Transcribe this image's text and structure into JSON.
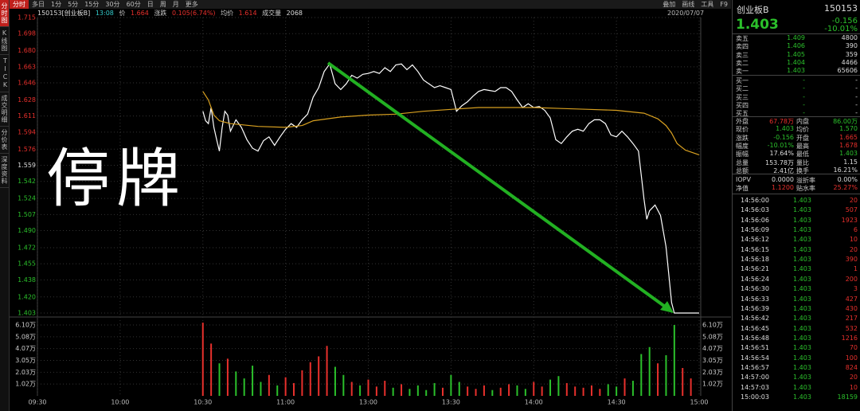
{
  "toolbar": {
    "tabs": [
      "分时",
      "多日",
      "1分",
      "5分",
      "15分",
      "30分",
      "60分",
      "日",
      "周",
      "月",
      "更多"
    ],
    "tools": [
      "叠加",
      "画线",
      "工具",
      "F9"
    ]
  },
  "side_tabs": [
    "分时图",
    "K线图",
    "TICK",
    "成交明细",
    "分价表",
    "深度资料"
  ],
  "info": {
    "code": "150153[创业板B]",
    "time": "13:08",
    "price_label": "价",
    "price": "1.664",
    "change_label": "涨跌",
    "change": "0.105(6.74%)",
    "avg_label": "均价",
    "avg": "1.614",
    "vol_label": "成交量",
    "vol": "2068",
    "date": "2020/07/07"
  },
  "overlay_text": "停牌",
  "chart_data": {
    "type": "line",
    "x": [
      60,
      61,
      62,
      63,
      64,
      65,
      66,
      67,
      68,
      69,
      70,
      72,
      74,
      76,
      78,
      80,
      82,
      84,
      86,
      88,
      90,
      92,
      94,
      96,
      98,
      100,
      102,
      104,
      106,
      108,
      110,
      112,
      114,
      116,
      118,
      120,
      122,
      124,
      126,
      128,
      130,
      132,
      134,
      136,
      138,
      140,
      142,
      144,
      146,
      148,
      150,
      152,
      154,
      156,
      158,
      160,
      162,
      164,
      166,
      168,
      170,
      172,
      174,
      176,
      178,
      180,
      182,
      184,
      186,
      188,
      190,
      192,
      194,
      196,
      198,
      200,
      202,
      204,
      206,
      208,
      210,
      212,
      214,
      216,
      218,
      220,
      221,
      222,
      224,
      226,
      228,
      230,
      231,
      240
    ],
    "series": [
      {
        "color": "#ffffff",
        "values": [
          1.616,
          1.606,
          1.603,
          1.62,
          1.599,
          1.586,
          1.574,
          1.599,
          1.616,
          1.612,
          1.595,
          1.607,
          1.599,
          1.586,
          1.577,
          1.574,
          1.585,
          1.589,
          1.58,
          1.589,
          1.597,
          1.603,
          1.599,
          1.607,
          1.613,
          1.631,
          1.641,
          1.658,
          1.666,
          1.645,
          1.639,
          1.645,
          1.654,
          1.651,
          1.655,
          1.656,
          1.658,
          1.656,
          1.662,
          1.658,
          1.665,
          1.666,
          1.66,
          1.665,
          1.658,
          1.649,
          1.645,
          1.641,
          1.643,
          1.641,
          1.639,
          1.616,
          1.622,
          1.626,
          1.632,
          1.637,
          1.639,
          1.638,
          1.637,
          1.641,
          1.641,
          1.637,
          1.628,
          1.62,
          1.624,
          1.62,
          1.621,
          1.617,
          1.609,
          1.586,
          1.582,
          1.589,
          1.595,
          1.597,
          1.595,
          1.603,
          1.607,
          1.607,
          1.603,
          1.591,
          1.589,
          1.595,
          1.589,
          1.582,
          1.574,
          1.523,
          1.502,
          1.511,
          1.517,
          1.506,
          1.473,
          1.414,
          1.403,
          1.403
        ]
      },
      {
        "color": "#d8a020",
        "x": [
          60,
          62,
          64,
          66,
          70,
          80,
          90,
          96,
          100,
          110,
          120,
          130,
          140,
          150,
          160,
          170,
          180,
          190,
          200,
          210,
          220,
          225,
          228,
          230,
          232,
          235,
          240
        ],
        "values": [
          1.637,
          1.628,
          1.612,
          1.606,
          1.603,
          1.6,
          1.599,
          1.601,
          1.606,
          1.61,
          1.612,
          1.613,
          1.616,
          1.618,
          1.62,
          1.62,
          1.62,
          1.619,
          1.618,
          1.617,
          1.614,
          1.608,
          1.601,
          1.593,
          1.582,
          1.575,
          1.57
        ]
      }
    ],
    "xlim": [
      0,
      240
    ],
    "xticks": [
      {
        "value": 0,
        "label": "09:30"
      },
      {
        "value": 30,
        "label": "10:00"
      },
      {
        "value": 60,
        "label": "10:30"
      },
      {
        "value": 90,
        "label": "11:00"
      },
      {
        "value": 120,
        "label": "13:00"
      },
      {
        "value": 150,
        "label": "13:30"
      },
      {
        "value": 180,
        "label": "14:00"
      },
      {
        "value": 210,
        "label": "14:30"
      },
      {
        "value": 240,
        "label": "15:00"
      }
    ],
    "ylim": [
      1.403,
      1.715
    ],
    "yticks": [
      1.715,
      1.698,
      {
        "value": 1.68,
        "label": "1.680"
      },
      1.663,
      1.646,
      1.628,
      1.611,
      1.594,
      1.576,
      1.559,
      1.542,
      1.524,
      1.507,
      {
        "value": 1.49,
        "label": "1.490"
      },
      1.472,
      1.455,
      1.438,
      {
        "value": 1.42,
        "label": "1.420"
      },
      1.403
    ],
    "grid": true,
    "up_color": "#e8302c",
    "down_color": "#2bc02b",
    "volume": {
      "x": [
        60,
        63,
        66,
        69,
        72,
        75,
        78,
        81,
        84,
        87,
        90,
        93,
        96,
        99,
        102,
        105,
        108,
        111,
        114,
        117,
        120,
        123,
        126,
        129,
        132,
        135,
        138,
        141,
        144,
        147,
        150,
        153,
        156,
        159,
        162,
        165,
        168,
        171,
        174,
        177,
        180,
        183,
        186,
        189,
        192,
        195,
        198,
        201,
        204,
        207,
        210,
        213,
        216,
        219,
        222,
        225,
        228,
        231,
        234,
        237
      ],
      "values": [
        6.3,
        4.5,
        2.8,
        3.2,
        2.1,
        1.5,
        2.6,
        1.2,
        1.8,
        0.9,
        1.6,
        1.1,
        2.2,
        2.9,
        3.4,
        4.3,
        2.5,
        1.8,
        1.2,
        0.9,
        1.4,
        0.8,
        1.3,
        0.7,
        1.0,
        0.6,
        0.9,
        0.5,
        1.1,
        0.7,
        1.8,
        1.2,
        0.8,
        0.6,
        0.9,
        0.5,
        0.7,
        1.0,
        0.9,
        0.6,
        1.2,
        0.8,
        1.4,
        1.7,
        1.1,
        0.8,
        0.7,
        0.9,
        0.6,
        1.0,
        0.8,
        1.5,
        1.3,
        3.6,
        4.2,
        2.8,
        3.5,
        6.1,
        2.4,
        1.5
      ],
      "ylim": [
        0,
        6.65
      ],
      "yticks": [
        {
          "value": 6.1,
          "label": "6.10万"
        },
        {
          "value": 5.08,
          "label": "5.08万"
        },
        {
          "value": 4.07,
          "label": "4.07万"
        },
        {
          "value": 3.05,
          "label": "3.05万"
        },
        {
          "value": 2.03,
          "label": "2.03万"
        },
        {
          "value": 1.02,
          "label": "1.02万"
        }
      ]
    }
  },
  "quote": {
    "name": "创业板B",
    "code": "150153",
    "price": "1.403",
    "change": "-0.156",
    "pct": "-10.01%",
    "book": [
      [
        "卖五",
        "1.409",
        "4800"
      ],
      [
        "卖四",
        "1.406",
        "390"
      ],
      [
        "卖三",
        "1.405",
        "359"
      ],
      [
        "卖二",
        "1.404",
        "4466"
      ],
      [
        "卖一",
        "1.403",
        "65606"
      ],
      [
        "买一",
        "-",
        "-"
      ],
      [
        "买二",
        "-",
        "-"
      ],
      [
        "买三",
        "-",
        "-"
      ],
      [
        "买四",
        "-",
        "-"
      ],
      [
        "买五",
        "-",
        "-"
      ]
    ],
    "stats": [
      [
        "外盘",
        "67.78万",
        "内盘",
        "86.00万"
      ],
      [
        "现价",
        "1.403",
        "均价",
        "1.570"
      ],
      [
        "涨跌",
        "-0.156",
        "开盘",
        "1.665"
      ],
      [
        "幅度",
        "-10.01%",
        "最高",
        "1.678"
      ],
      [
        "振幅",
        "17.64%",
        "最低",
        "1.403"
      ],
      [
        "总量",
        "153.78万",
        "量比",
        "1.15"
      ],
      [
        "总额",
        "2.41亿",
        "换手",
        "16.21%"
      ],
      [
        "IOPV",
        "0.0000",
        "溢折率",
        "0.00%"
      ],
      [
        "净值",
        "1.1200",
        "贴水率",
        "25.27%"
      ]
    ],
    "ticks": [
      [
        "14:56:00",
        "1.403",
        "20"
      ],
      [
        "14:56:03",
        "1.403",
        "507"
      ],
      [
        "14:56:06",
        "1.403",
        "1923"
      ],
      [
        "14:56:09",
        "1.403",
        "6"
      ],
      [
        "14:56:12",
        "1.403",
        "10"
      ],
      [
        "14:56:15",
        "1.403",
        "20"
      ],
      [
        "14:56:18",
        "1.403",
        "390"
      ],
      [
        "14:56:21",
        "1.403",
        "1"
      ],
      [
        "14:56:24",
        "1.403",
        "200"
      ],
      [
        "14:56:30",
        "1.403",
        "3"
      ],
      [
        "14:56:33",
        "1.403",
        "427"
      ],
      [
        "14:56:39",
        "1.403",
        "430"
      ],
      [
        "14:56:42",
        "1.403",
        "217"
      ],
      [
        "14:56:45",
        "1.403",
        "532"
      ],
      [
        "14:56:48",
        "1.403",
        "1216"
      ],
      [
        "14:56:51",
        "1.403",
        "70"
      ],
      [
        "14:56:54",
        "1.403",
        "100"
      ],
      [
        "14:56:57",
        "1.403",
        "824"
      ],
      [
        "14:57:00",
        "1.403",
        "20"
      ],
      [
        "14:57:03",
        "1.403",
        "10"
      ],
      [
        "15:00:03",
        "1.403",
        "18159"
      ]
    ]
  }
}
